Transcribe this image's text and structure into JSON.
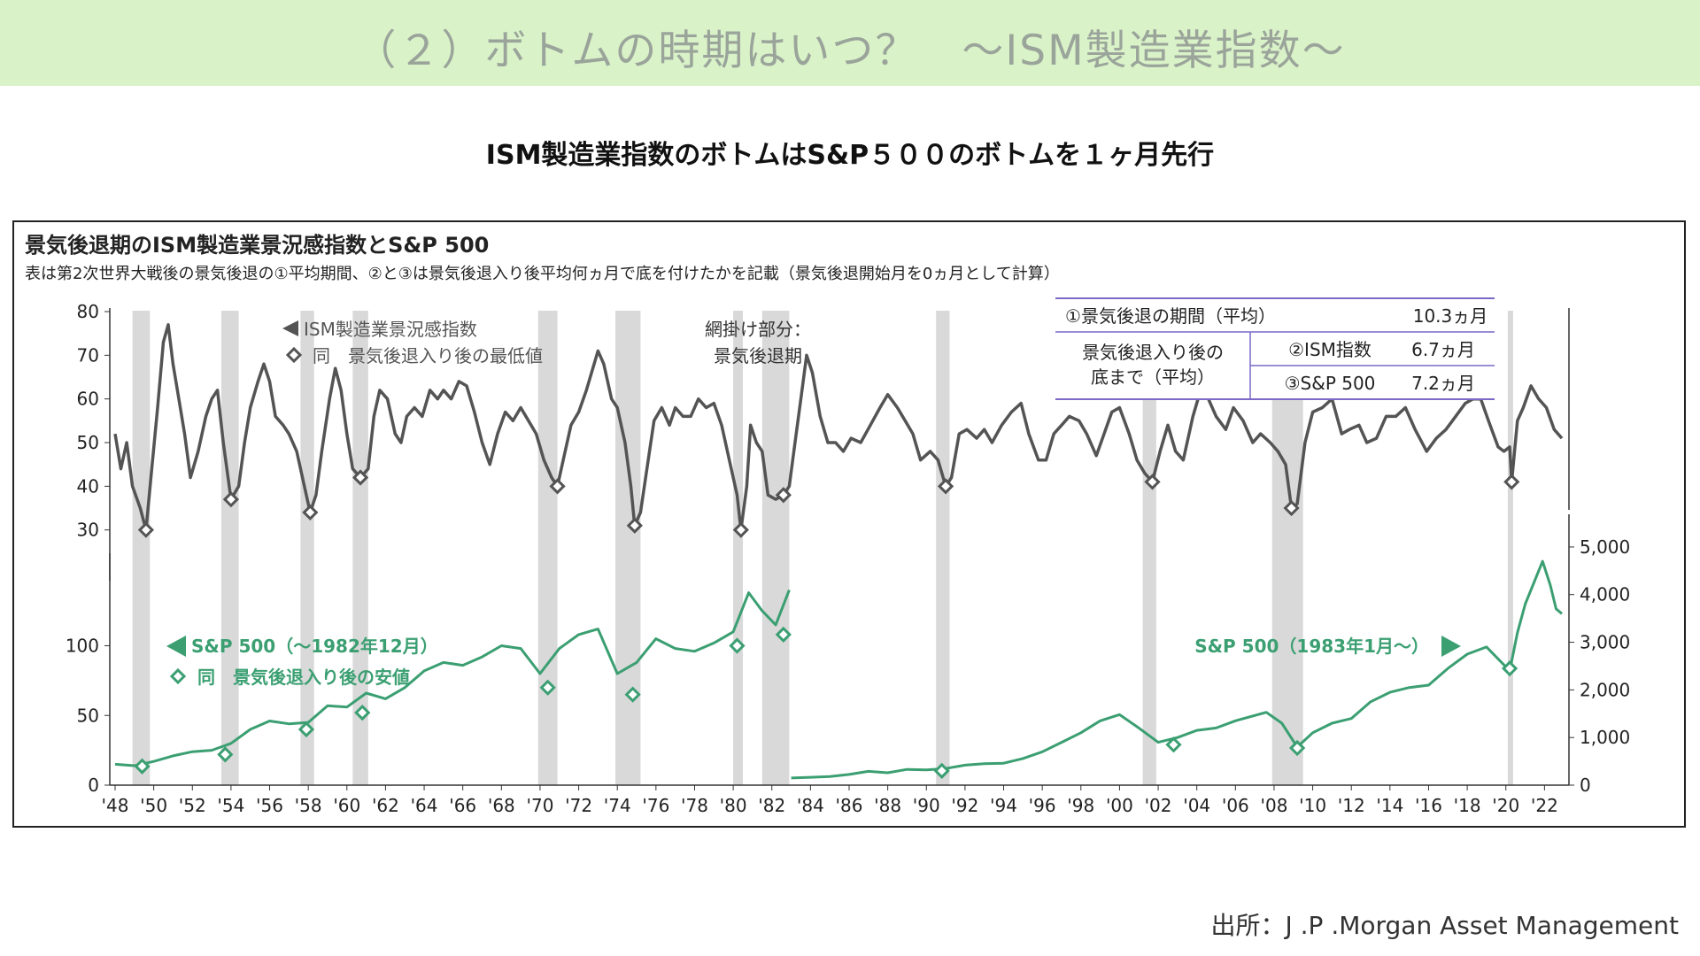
{
  "banner": {
    "title": "（２）ボトムの時期はいつ？　～ISM製造業指数～",
    "bg_color": "#d9f2c8"
  },
  "subtitle": "ISM製造業指数のボトムはS&P５００のボトムを１ヶ月先行",
  "source": "出所：J .P .Morgan Asset Management",
  "chart_data": {
    "type": "line",
    "title": "景気後退期のISM製造業景況感指数とS&P 500",
    "subtitle": "表は第2次世界大戦後の景気後退の①平均期間、②と③は景気後退入り後平均何ヵ月で底を付けたかを記載（景気後退開始月を0ヵ月として計算）",
    "x_ticks": [
      "'48",
      "'50",
      "'52",
      "'54",
      "'56",
      "'58",
      "'60",
      "'62",
      "'64",
      "'66",
      "'68",
      "'70",
      "'72",
      "'74",
      "'76",
      "'78",
      "'80",
      "'82",
      "'84",
      "'86",
      "'88",
      "'90",
      "'92",
      "'94",
      "'96",
      "'98",
      "'00",
      "'02",
      "'04",
      "'06",
      "'08",
      "'10",
      "'12",
      "'14",
      "'16",
      "'18",
      "'20",
      "'22"
    ],
    "x_range": [
      1948,
      2022.9
    ],
    "recessions": [
      [
        1948.9,
        1949.8
      ],
      [
        1953.5,
        1954.4
      ],
      [
        1957.6,
        1958.3
      ],
      [
        1960.3,
        1961.1
      ],
      [
        1969.9,
        1970.9
      ],
      [
        1973.9,
        1975.2
      ],
      [
        1980.0,
        1980.5
      ],
      [
        1981.5,
        1982.9
      ],
      [
        1990.5,
        1991.2
      ],
      [
        2001.2,
        2001.9
      ],
      [
        2007.9,
        2009.5
      ],
      [
        2020.1,
        2020.3
      ]
    ],
    "ism": {
      "y_range": [
        20,
        80
      ],
      "y_ticks": [
        30,
        40,
        50,
        60,
        70,
        80
      ],
      "color": "#545454",
      "legend_line": "ISM製造業景況感指数",
      "legend_marker": "同　景気後退入り後の最低値",
      "points": [
        [
          1948,
          52
        ],
        [
          1948.3,
          44
        ],
        [
          1948.6,
          50
        ],
        [
          1948.9,
          40
        ],
        [
          1949.3,
          35
        ],
        [
          1949.6,
          30
        ],
        [
          1949.9,
          44
        ],
        [
          1950.2,
          58
        ],
        [
          1950.5,
          73
        ],
        [
          1950.75,
          77
        ],
        [
          1951.0,
          68
        ],
        [
          1951.3,
          60
        ],
        [
          1951.6,
          52
        ],
        [
          1951.9,
          42
        ],
        [
          1952.3,
          48
        ],
        [
          1952.7,
          56
        ],
        [
          1953.0,
          60
        ],
        [
          1953.3,
          62
        ],
        [
          1953.6,
          50
        ],
        [
          1954.0,
          37
        ],
        [
          1954.4,
          40
        ],
        [
          1954.7,
          50
        ],
        [
          1955.0,
          58
        ],
        [
          1955.4,
          64
        ],
        [
          1955.7,
          68
        ],
        [
          1956.0,
          64
        ],
        [
          1956.3,
          56
        ],
        [
          1956.7,
          54
        ],
        [
          1957.0,
          52
        ],
        [
          1957.4,
          48
        ],
        [
          1957.7,
          42
        ],
        [
          1958.1,
          34
        ],
        [
          1958.4,
          38
        ],
        [
          1958.7,
          48
        ],
        [
          1959.1,
          60
        ],
        [
          1959.4,
          67
        ],
        [
          1959.7,
          62
        ],
        [
          1960.0,
          52
        ],
        [
          1960.3,
          44
        ],
        [
          1960.7,
          42
        ],
        [
          1961.1,
          44
        ],
        [
          1961.4,
          56
        ],
        [
          1961.7,
          62
        ],
        [
          1962.1,
          60
        ],
        [
          1962.5,
          52
        ],
        [
          1962.8,
          50
        ],
        [
          1963.1,
          56
        ],
        [
          1963.5,
          58
        ],
        [
          1963.9,
          56
        ],
        [
          1964.3,
          62
        ],
        [
          1964.7,
          60
        ],
        [
          1965.0,
          62
        ],
        [
          1965.4,
          60
        ],
        [
          1965.8,
          64
        ],
        [
          1966.2,
          63
        ],
        [
          1966.6,
          57
        ],
        [
          1967.0,
          50
        ],
        [
          1967.4,
          45
        ],
        [
          1967.8,
          52
        ],
        [
          1968.2,
          57
        ],
        [
          1968.6,
          55
        ],
        [
          1969.0,
          58
        ],
        [
          1969.4,
          55
        ],
        [
          1969.8,
          52
        ],
        [
          1970.2,
          46
        ],
        [
          1970.6,
          42
        ],
        [
          1970.9,
          40
        ],
        [
          1971.2,
          46
        ],
        [
          1971.6,
          54
        ],
        [
          1972.0,
          57
        ],
        [
          1972.4,
          62
        ],
        [
          1972.8,
          68
        ],
        [
          1973.0,
          71
        ],
        [
          1973.3,
          68
        ],
        [
          1973.7,
          60
        ],
        [
          1974.0,
          58
        ],
        [
          1974.4,
          50
        ],
        [
          1974.7,
          40
        ],
        [
          1974.9,
          31
        ],
        [
          1975.2,
          34
        ],
        [
          1975.6,
          46
        ],
        [
          1975.9,
          55
        ],
        [
          1976.3,
          58
        ],
        [
          1976.7,
          54
        ],
        [
          1977.0,
          58
        ],
        [
          1977.4,
          56
        ],
        [
          1977.8,
          56
        ],
        [
          1978.2,
          60
        ],
        [
          1978.6,
          58
        ],
        [
          1979.0,
          59
        ],
        [
          1979.4,
          54
        ],
        [
          1979.8,
          46
        ],
        [
          1980.2,
          38
        ],
        [
          1980.4,
          30
        ],
        [
          1980.7,
          40
        ],
        [
          1980.9,
          54
        ],
        [
          1981.2,
          50
        ],
        [
          1981.5,
          48
        ],
        [
          1981.8,
          38
        ],
        [
          1982.2,
          37
        ],
        [
          1982.6,
          38
        ],
        [
          1982.9,
          40
        ],
        [
          1983.2,
          50
        ],
        [
          1983.5,
          60
        ],
        [
          1983.8,
          70
        ],
        [
          1984.1,
          66
        ],
        [
          1984.5,
          56
        ],
        [
          1984.9,
          50
        ],
        [
          1985.3,
          50
        ],
        [
          1985.7,
          48
        ],
        [
          1986.1,
          51
        ],
        [
          1986.6,
          50
        ],
        [
          1987.1,
          54
        ],
        [
          1987.6,
          58
        ],
        [
          1988.0,
          61
        ],
        [
          1988.5,
          58
        ],
        [
          1988.9,
          55
        ],
        [
          1989.3,
          52
        ],
        [
          1989.7,
          46
        ],
        [
          1990.2,
          48
        ],
        [
          1990.6,
          46
        ],
        [
          1991.0,
          40
        ],
        [
          1991.3,
          42
        ],
        [
          1991.7,
          52
        ],
        [
          1992.1,
          53
        ],
        [
          1992.6,
          51
        ],
        [
          1993.0,
          53
        ],
        [
          1993.4,
          50
        ],
        [
          1993.9,
          54
        ],
        [
          1994.4,
          57
        ],
        [
          1994.9,
          59
        ],
        [
          1995.3,
          52
        ],
        [
          1995.8,
          46
        ],
        [
          1996.2,
          46
        ],
        [
          1996.6,
          52
        ],
        [
          1997.0,
          54
        ],
        [
          1997.4,
          56
        ],
        [
          1997.9,
          55
        ],
        [
          1998.3,
          52
        ],
        [
          1998.8,
          47
        ],
        [
          1999.2,
          52
        ],
        [
          1999.6,
          57
        ],
        [
          2000.0,
          58
        ],
        [
          2000.5,
          52
        ],
        [
          2000.9,
          46
        ],
        [
          2001.3,
          43
        ],
        [
          2001.7,
          41
        ],
        [
          2002.1,
          48
        ],
        [
          2002.5,
          54
        ],
        [
          2002.9,
          48
        ],
        [
          2003.3,
          46
        ],
        [
          2003.8,
          56
        ],
        [
          2004.2,
          62
        ],
        [
          2004.6,
          60
        ],
        [
          2005.0,
          56
        ],
        [
          2005.5,
          53
        ],
        [
          2005.9,
          58
        ],
        [
          2006.4,
          55
        ],
        [
          2006.9,
          50
        ],
        [
          2007.3,
          52
        ],
        [
          2007.8,
          50
        ],
        [
          2008.2,
          48
        ],
        [
          2008.6,
          45
        ],
        [
          2008.9,
          35
        ],
        [
          2009.2,
          36
        ],
        [
          2009.6,
          50
        ],
        [
          2010.0,
          57
        ],
        [
          2010.5,
          58
        ],
        [
          2011.0,
          60
        ],
        [
          2011.5,
          52
        ],
        [
          2011.9,
          53
        ],
        [
          2012.4,
          54
        ],
        [
          2012.8,
          50
        ],
        [
          2013.3,
          51
        ],
        [
          2013.8,
          56
        ],
        [
          2014.3,
          56
        ],
        [
          2014.8,
          58
        ],
        [
          2015.3,
          53
        ],
        [
          2015.9,
          48
        ],
        [
          2016.4,
          51
        ],
        [
          2016.9,
          53
        ],
        [
          2017.4,
          56
        ],
        [
          2017.9,
          59
        ],
        [
          2018.3,
          60
        ],
        [
          2018.7,
          60
        ],
        [
          2019.1,
          55
        ],
        [
          2019.6,
          49
        ],
        [
          2019.9,
          48
        ],
        [
          2020.2,
          49
        ],
        [
          2020.3,
          41
        ],
        [
          2020.6,
          55
        ],
        [
          2020.9,
          58
        ],
        [
          2021.3,
          63
        ],
        [
          2021.7,
          60
        ],
        [
          2022.1,
          58
        ],
        [
          2022.5,
          53
        ],
        [
          2022.9,
          51
        ]
      ],
      "markers": [
        [
          1949.6,
          30
        ],
        [
          1954.0,
          37
        ],
        [
          1958.1,
          34
        ],
        [
          1960.7,
          42
        ],
        [
          1970.9,
          40
        ],
        [
          1974.9,
          31
        ],
        [
          1980.4,
          30
        ],
        [
          1982.6,
          38
        ],
        [
          1991.0,
          40
        ],
        [
          2001.7,
          41
        ],
        [
          2008.9,
          35
        ],
        [
          2020.3,
          41
        ]
      ]
    },
    "sp_left": {
      "y_range": [
        0,
        160
      ],
      "y_ticks": [
        0,
        50,
        100
      ],
      "color": "#3b9f72",
      "legend_line": "S&P 500（〜1982年12月）",
      "legend_marker": "同　景気後退入り後の安値",
      "points": [
        [
          1948,
          15
        ],
        [
          1949,
          14
        ],
        [
          1950,
          17
        ],
        [
          1951,
          21
        ],
        [
          1952,
          24
        ],
        [
          1953,
          25
        ],
        [
          1954,
          30
        ],
        [
          1955,
          40
        ],
        [
          1956,
          46
        ],
        [
          1957,
          44
        ],
        [
          1958,
          45
        ],
        [
          1959,
          57
        ],
        [
          1960,
          56
        ],
        [
          1961,
          66
        ],
        [
          1962,
          62
        ],
        [
          1963,
          70
        ],
        [
          1964,
          82
        ],
        [
          1965,
          88
        ],
        [
          1966,
          86
        ],
        [
          1967,
          92
        ],
        [
          1968,
          100
        ],
        [
          1969,
          98
        ],
        [
          1970,
          80
        ],
        [
          1971,
          98
        ],
        [
          1972,
          108
        ],
        [
          1973,
          112
        ],
        [
          1974,
          80
        ],
        [
          1975,
          88
        ],
        [
          1976,
          105
        ],
        [
          1977,
          98
        ],
        [
          1978,
          96
        ],
        [
          1979,
          102
        ],
        [
          1980,
          110
        ],
        [
          1980.8,
          138
        ],
        [
          1981.5,
          125
        ],
        [
          1982.2,
          115
        ],
        [
          1982.9,
          140
        ]
      ],
      "markers": [
        [
          1949.4,
          13.5
        ],
        [
          1953.7,
          22
        ],
        [
          1957.9,
          40
        ],
        [
          1960.8,
          52
        ],
        [
          1970.4,
          70
        ],
        [
          1974.8,
          65
        ],
        [
          1980.2,
          100
        ],
        [
          1982.6,
          108
        ]
      ],
      "legend_position": "left"
    },
    "sp_right": {
      "y_range": [
        0,
        5500
      ],
      "y_ticks": [
        0,
        1000,
        2000,
        3000,
        4000,
        5000
      ],
      "y_tick_labels": [
        "0",
        "1,000",
        "2,000",
        "3,000",
        "4,000",
        "5,000"
      ],
      "color": "#3b9f72",
      "legend_line": "S&P 500（1983年1月〜）",
      "points": [
        [
          1983,
          150
        ],
        [
          1984,
          165
        ],
        [
          1985,
          180
        ],
        [
          1986,
          225
        ],
        [
          1987,
          290
        ],
        [
          1988,
          260
        ],
        [
          1989,
          330
        ],
        [
          1990,
          320
        ],
        [
          1991,
          350
        ],
        [
          1992,
          420
        ],
        [
          1993,
          450
        ],
        [
          1994,
          460
        ],
        [
          1995,
          560
        ],
        [
          1996,
          700
        ],
        [
          1997,
          900
        ],
        [
          1998,
          1100
        ],
        [
          1999,
          1350
        ],
        [
          2000,
          1480
        ],
        [
          2001,
          1200
        ],
        [
          2002,
          900
        ],
        [
          2003,
          1000
        ],
        [
          2004,
          1150
        ],
        [
          2005,
          1200
        ],
        [
          2006,
          1350
        ],
        [
          2007.6,
          1530
        ],
        [
          2008.4,
          1300
        ],
        [
          2009.2,
          800
        ],
        [
          2010,
          1100
        ],
        [
          2011,
          1300
        ],
        [
          2012,
          1400
        ],
        [
          2013,
          1750
        ],
        [
          2014,
          1950
        ],
        [
          2015,
          2050
        ],
        [
          2016,
          2100
        ],
        [
          2017,
          2450
        ],
        [
          2018,
          2750
        ],
        [
          2019,
          2900
        ],
        [
          2020.2,
          2400
        ],
        [
          2020.6,
          3200
        ],
        [
          2021,
          3800
        ],
        [
          2021.9,
          4700
        ],
        [
          2022.3,
          4200
        ],
        [
          2022.6,
          3700
        ],
        [
          2022.9,
          3600
        ]
      ],
      "markers": [
        [
          1990.8,
          300
        ],
        [
          2002.8,
          850
        ],
        [
          2009.2,
          780
        ],
        [
          2020.2,
          2450
        ]
      ],
      "legend_position": "right"
    },
    "shading_label": [
      "網掛け部分：",
      "景気後退期"
    ],
    "table": {
      "rows": [
        {
          "label": "①景気後退の期間（平均）",
          "value": "10.3ヵ月"
        },
        {
          "group": [
            "景気後退入り後の",
            "底まで（平均）"
          ],
          "label": "②ISM指数",
          "value": "6.7ヵ月"
        },
        {
          "label": "③S&P 500",
          "value": "7.2ヵ月"
        }
      ]
    }
  }
}
